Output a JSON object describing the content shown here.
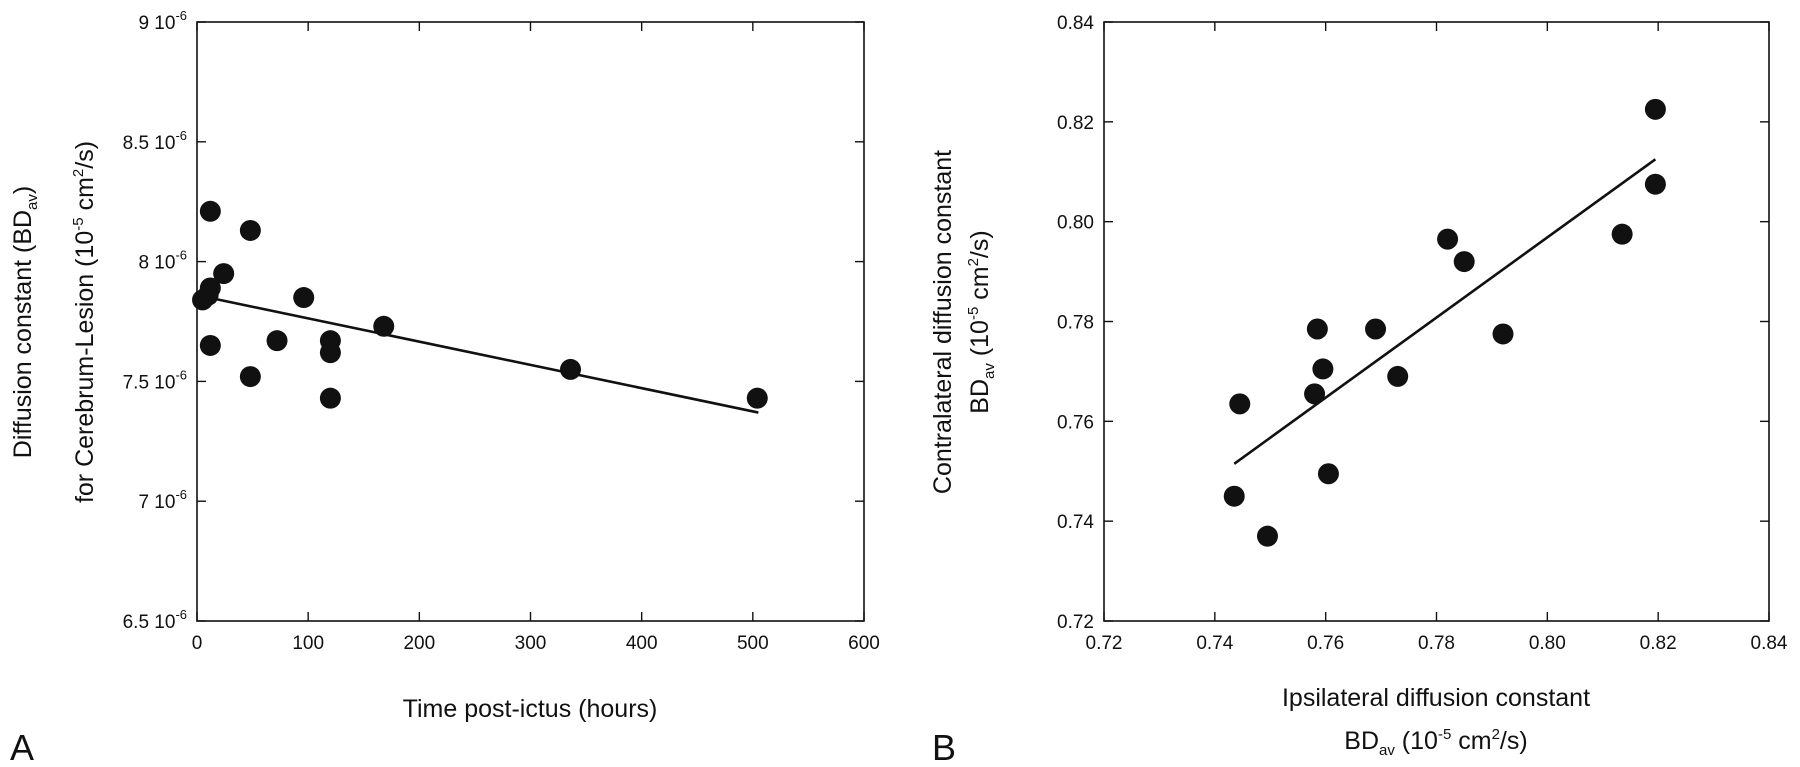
{
  "figure": {
    "panel_a_letter": "A",
    "panel_b_letter": "B"
  },
  "chart_data": [
    {
      "type": "scatter",
      "panel": "A",
      "title": "",
      "xlabel": "Time post-ictus (hours)",
      "ylabel_line1": {
        "pre": "Diffusion constant  (BD",
        "sub": "av",
        "post": ")"
      },
      "ylabel_line2": {
        "pre": "for Cerebrum-Lesion (10",
        "sup": "-5",
        "mid": " cm",
        "sup2": "2",
        "post": "/s)"
      },
      "xlim": [
        0,
        600
      ],
      "ylim": [
        6.5e-06,
        9e-06
      ],
      "xticks": [
        0,
        100,
        200,
        300,
        400,
        500,
        600
      ],
      "xtick_labels": [
        "0",
        "100",
        "200",
        "300",
        "400",
        "500",
        "600"
      ],
      "yticks": [
        6.5e-06,
        7e-06,
        7.5e-06,
        8e-06,
        8.5e-06,
        9e-06
      ],
      "ytick_labels": [
        {
          "base": "6.5 10",
          "exp": "-6"
        },
        {
          "base": "7 10",
          "exp": "-6"
        },
        {
          "base": "7.5 10",
          "exp": "-6"
        },
        {
          "base": "8 10",
          "exp": "-6"
        },
        {
          "base": "8.5 10",
          "exp": "-6"
        },
        {
          "base": "9 10",
          "exp": "-6"
        }
      ],
      "points": [
        {
          "x": 5,
          "y": 7.84e-06
        },
        {
          "x": 10,
          "y": 7.86e-06
        },
        {
          "x": 12,
          "y": 7.89e-06
        },
        {
          "x": 12,
          "y": 7.65e-06
        },
        {
          "x": 12,
          "y": 8.21e-06
        },
        {
          "x": 24,
          "y": 7.95e-06
        },
        {
          "x": 48,
          "y": 8.13e-06
        },
        {
          "x": 48,
          "y": 7.52e-06
        },
        {
          "x": 72,
          "y": 7.67e-06
        },
        {
          "x": 96,
          "y": 7.85e-06
        },
        {
          "x": 120,
          "y": 7.67e-06
        },
        {
          "x": 120,
          "y": 7.62e-06
        },
        {
          "x": 120,
          "y": 7.43e-06
        },
        {
          "x": 168,
          "y": 7.73e-06
        },
        {
          "x": 336,
          "y": 7.55e-06
        },
        {
          "x": 504,
          "y": 7.43e-06
        }
      ],
      "fit_line": {
        "x": [
          0,
          505
        ],
        "y": [
          7.86e-06,
          7.37e-06
        ]
      },
      "grid": false,
      "legend": "none"
    },
    {
      "type": "scatter",
      "panel": "B",
      "title": "",
      "xlabel_line1": "Ipsilateral  diffusion constant",
      "xlabel_line2": {
        "pre": "BD",
        "sub": "av",
        "mid": "  (10",
        "sup": "-5",
        "mid2": " cm",
        "sup2": "2",
        "post": "/s)"
      },
      "ylabel_line1": "Contralateral  diffusion constant",
      "ylabel_line2": {
        "pre": "BD",
        "sub": "av",
        "mid": " (10",
        "sup": "-5",
        "mid2": " cm",
        "sup2": "2",
        "post": "/s)"
      },
      "xlim": [
        0.72,
        0.84
      ],
      "ylim": [
        0.72,
        0.84
      ],
      "xticks": [
        0.72,
        0.74,
        0.76,
        0.78,
        0.8,
        0.82,
        0.84
      ],
      "xtick_labels": [
        "0.72",
        "0.74",
        "0.76",
        "0.78",
        "0.80",
        "0.82",
        "0.84"
      ],
      "yticks": [
        0.72,
        0.74,
        0.76,
        0.78,
        0.8,
        0.82,
        0.84
      ],
      "ytick_labels": [
        "0.72",
        "0.74",
        "0.76",
        "0.78",
        "0.80",
        "0.82",
        "0.84"
      ],
      "points": [
        {
          "x": 0.7435,
          "y": 0.745
        },
        {
          "x": 0.7445,
          "y": 0.7635
        },
        {
          "x": 0.7495,
          "y": 0.737
        },
        {
          "x": 0.758,
          "y": 0.7655
        },
        {
          "x": 0.7585,
          "y": 0.7785
        },
        {
          "x": 0.7595,
          "y": 0.7705
        },
        {
          "x": 0.7605,
          "y": 0.7495
        },
        {
          "x": 0.769,
          "y": 0.7785
        },
        {
          "x": 0.773,
          "y": 0.769
        },
        {
          "x": 0.782,
          "y": 0.7965
        },
        {
          "x": 0.785,
          "y": 0.792
        },
        {
          "x": 0.792,
          "y": 0.7775
        },
        {
          "x": 0.8135,
          "y": 0.7975
        },
        {
          "x": 0.8195,
          "y": 0.8225
        },
        {
          "x": 0.8195,
          "y": 0.8075
        }
      ],
      "fit_line": {
        "x": [
          0.7435,
          0.8195
        ],
        "y": [
          0.7515,
          0.8125
        ]
      },
      "grid": false,
      "legend": "none"
    }
  ]
}
